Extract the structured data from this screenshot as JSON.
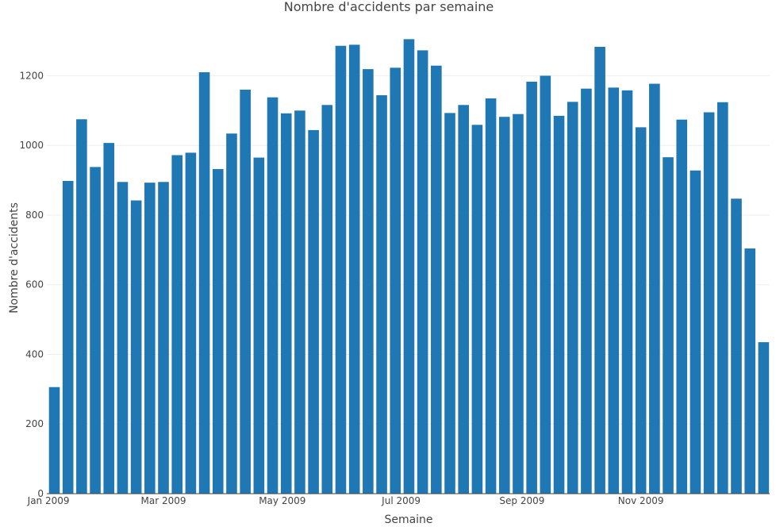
{
  "chart_data": {
    "type": "bar",
    "title": "Nombre d'accidents par semaine",
    "xlabel": "Semaine",
    "ylabel": "Nombre d'accidents",
    "ylim": [
      0,
      1340
    ],
    "yticks": [
      0,
      200,
      400,
      600,
      800,
      1000,
      1200
    ],
    "xticks": [
      {
        "date": "2009-01-01",
        "label": "Jan 2009"
      },
      {
        "date": "2009-03-01",
        "label": "Mar 2009"
      },
      {
        "date": "2009-05-01",
        "label": "May 2009"
      },
      {
        "date": "2009-07-01",
        "label": "Jul 2009"
      },
      {
        "date": "2009-09-01",
        "label": "Sep 2009"
      },
      {
        "date": "2009-11-01",
        "label": "Nov 2009"
      }
    ],
    "grid": true,
    "bar_color": "#1f77b4",
    "categories": [
      "2009-01-04",
      "2009-01-11",
      "2009-01-18",
      "2009-01-25",
      "2009-02-01",
      "2009-02-08",
      "2009-02-15",
      "2009-02-22",
      "2009-03-01",
      "2009-03-08",
      "2009-03-15",
      "2009-03-22",
      "2009-03-29",
      "2009-04-05",
      "2009-04-12",
      "2009-04-19",
      "2009-04-26",
      "2009-05-03",
      "2009-05-10",
      "2009-05-17",
      "2009-05-24",
      "2009-05-31",
      "2009-06-07",
      "2009-06-14",
      "2009-06-21",
      "2009-06-28",
      "2009-07-05",
      "2009-07-12",
      "2009-07-19",
      "2009-07-26",
      "2009-08-02",
      "2009-08-09",
      "2009-08-16",
      "2009-08-23",
      "2009-08-30",
      "2009-09-06",
      "2009-09-13",
      "2009-09-20",
      "2009-09-27",
      "2009-10-04",
      "2009-10-11",
      "2009-10-18",
      "2009-10-25",
      "2009-11-01",
      "2009-11-08",
      "2009-11-15",
      "2009-11-22",
      "2009-11-29",
      "2009-12-06",
      "2009-12-13",
      "2009-12-20",
      "2009-12-27",
      "2010-01-03"
    ],
    "values": [
      306,
      898,
      1075,
      938,
      1007,
      895,
      842,
      893,
      895,
      972,
      979,
      1210,
      932,
      1034,
      1160,
      965,
      1138,
      1092,
      1100,
      1044,
      1116,
      1286,
      1289,
      1219,
      1144,
      1223,
      1305,
      1273,
      1229,
      1093,
      1116,
      1059,
      1135,
      1082,
      1090,
      1183,
      1200,
      1085,
      1125,
      1163,
      1283,
      1166,
      1158,
      1052,
      1177,
      966,
      1074,
      928,
      1095,
      1124,
      847,
      704,
      435
    ]
  }
}
